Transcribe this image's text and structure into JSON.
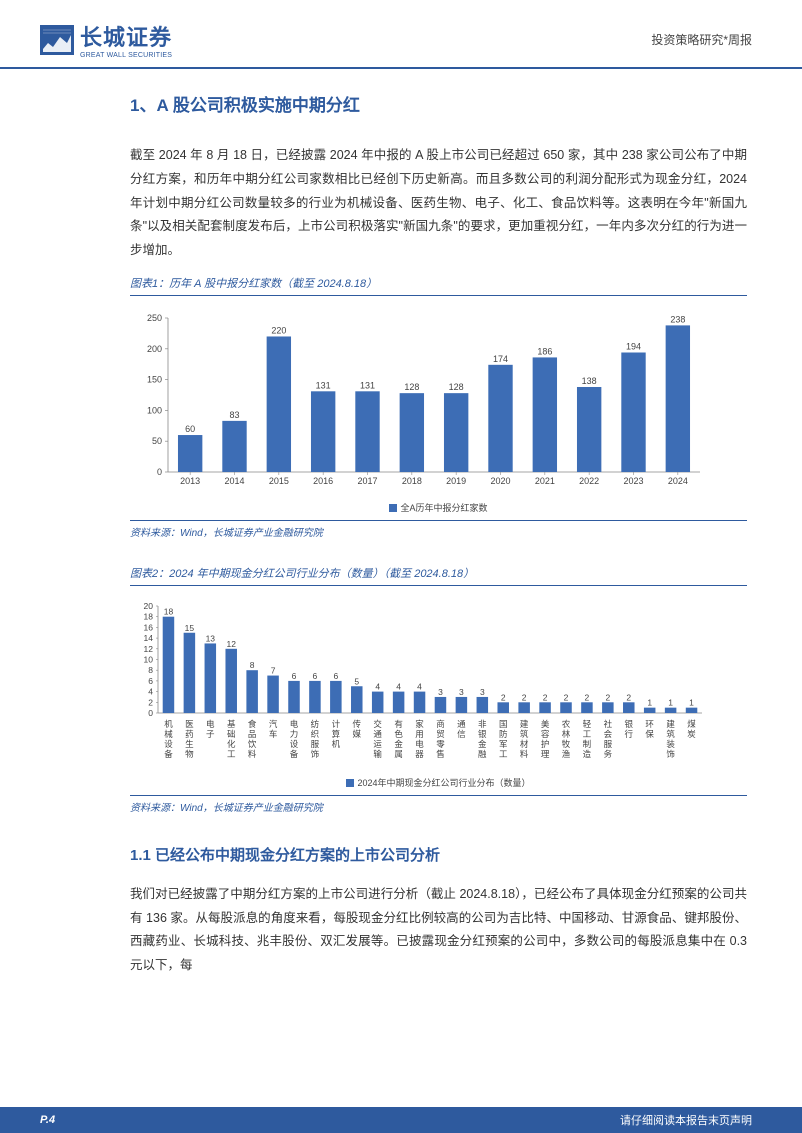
{
  "header": {
    "logo_main": "长城证券",
    "logo_sub": "GREAT WALL SECURITIES",
    "right_text": "投资策略研究*周报"
  },
  "section1": {
    "title": "1、A 股公司积极实施中期分红",
    "paragraph": "截至 2024 年 8 月 18 日，已经披露 2024 年中报的 A 股上市公司已经超过 650 家，其中 238 家公司公布了中期分红方案，和历年中期分红公司家数相比已经创下历史新高。而且多数公司的利润分配形式为现金分红，2024 年计划中期分红公司数量较多的行业为机械设备、医药生物、电子、化工、食品饮料等。这表明在今年\"新国九条\"以及相关配套制度发布后，上市公司积极落实\"新国九条\"的要求，更加重视分红，一年内多次分红的行为进一步增加。"
  },
  "chart1": {
    "title": "图表1：历年 A 股中报分红家数（截至 2024.8.18）",
    "type": "bar",
    "categories": [
      "2013",
      "2014",
      "2015",
      "2016",
      "2017",
      "2018",
      "2019",
      "2020",
      "2021",
      "2022",
      "2023",
      "2024"
    ],
    "values": [
      60,
      83,
      220,
      131,
      131,
      128,
      128,
      174,
      186,
      138,
      194,
      238
    ],
    "bar_color": "#3d6db5",
    "ylim": [
      0,
      250
    ],
    "ytick_step": 50,
    "yticks": [
      0,
      50,
      100,
      150,
      200,
      250
    ],
    "legend": "全A历年中报分红家数",
    "axis_color": "#888",
    "label_fontsize": 9,
    "value_fontsize": 9,
    "source": "资料来源：Wind，长城证券产业金融研究院"
  },
  "chart2": {
    "title": "图表2：2024 年中期现金分红公司行业分布（数量）（截至 2024.8.18）",
    "type": "bar",
    "categories": [
      "机械设备",
      "医药生物",
      "电子",
      "基础化工",
      "食品饮料",
      "汽车",
      "电力设备",
      "纺织服饰",
      "计算机",
      "传媒",
      "交通运输",
      "有色金属",
      "家用电器",
      "商贸零售",
      "通信",
      "非银金融",
      "国防军工",
      "建筑材料",
      "美容护理",
      "农林牧渔",
      "轻工制造",
      "社会服务",
      "银行",
      "环保",
      "建筑装饰",
      "煤炭"
    ],
    "values": [
      18,
      15,
      13,
      12,
      8,
      7,
      6,
      6,
      6,
      5,
      4,
      4,
      4,
      3,
      3,
      3,
      2,
      2,
      2,
      2,
      2,
      2,
      2,
      1,
      1,
      1
    ],
    "bar_color": "#3d6db5",
    "ylim": [
      0,
      20
    ],
    "ytick_step": 2,
    "yticks": [
      0,
      2,
      4,
      6,
      8,
      10,
      12,
      14,
      16,
      18,
      20
    ],
    "legend": "2024年中期现金分红公司行业分布（数量）",
    "axis_color": "#888",
    "label_fontsize": 8.5,
    "value_fontsize": 8.5,
    "source": "资料来源：Wind，长城证券产业金融研究院"
  },
  "section11": {
    "title": "1.1 已经公布中期现金分红方案的上市公司分析",
    "paragraph": "我们对已经披露了中期分红方案的上市公司进行分析（截止 2024.8.18），已经公布了具体现金分红预案的公司共有 136 家。从每股派息的角度来看，每股现金分红比例较高的公司为吉比特、中国移动、甘源食品、键邦股份、西藏药业、长城科技、兆丰股份、双汇发展等。已披露现金分红预案的公司中，多数公司的每股派息集中在 0.3 元以下，每"
  },
  "footer": {
    "page": "P.4",
    "disclaimer": "请仔细阅读本报告末页声明"
  },
  "colors": {
    "brand_blue": "#2e5a9e",
    "bar_blue": "#3d6db5",
    "text": "#333333",
    "axis": "#888888"
  }
}
